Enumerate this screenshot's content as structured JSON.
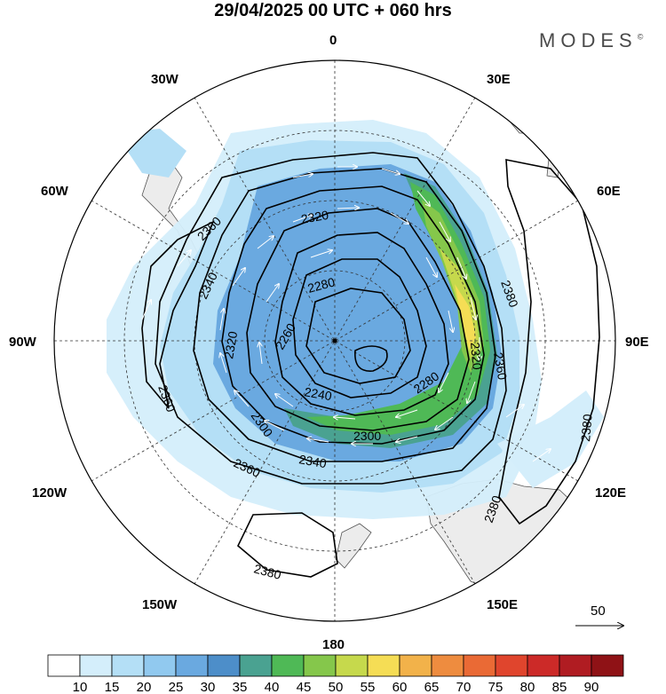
{
  "title": "29/04/2025  00 UTC  + 060 hrs",
  "brand": "MODES",
  "brand_mark": "©",
  "longitude_labels": {
    "top": "0",
    "n30e": "30E",
    "n60e": "60E",
    "e90": "90E",
    "n120e": "120E",
    "n150e": "150E",
    "bottom": "180",
    "n150w": "150W",
    "n120w": "120W",
    "w90": "90W",
    "n60w": "60W",
    "n30w": "30W"
  },
  "contour_labels": {
    "c2360a": "2360",
    "c2320a": "2320",
    "c2340a": "2340",
    "c2280a": "2280",
    "c2320b": "2320",
    "c2260a": "2260",
    "c2360b": "2360",
    "c2380a": "2380",
    "c2320c": "2320",
    "c2360c": "2360",
    "c2240a": "2240",
    "c2280b": "2280",
    "c2300a": "2300",
    "c2300b": "2300",
    "c2340b": "2340",
    "c2360d": "2360",
    "c2380b": "2380",
    "c2380c": "2380",
    "c2380d": "2380"
  },
  "vector_reference": "50",
  "colorbar": {
    "labels": [
      "10",
      "15",
      "20",
      "25",
      "30",
      "35",
      "40",
      "45",
      "50",
      "55",
      "60",
      "65",
      "70",
      "75",
      "80",
      "85",
      "90"
    ],
    "colors": [
      "#ffffff",
      "#d4eefb",
      "#b4dff6",
      "#91c9ef",
      "#6aa9e0",
      "#4d8ec9",
      "#4aa291",
      "#4fb956",
      "#85c74b",
      "#c6d94c",
      "#f5dd55",
      "#f2b24a",
      "#ee8c3f",
      "#ea6a35",
      "#e0452d",
      "#cc2a28",
      "#b01c22",
      "#8f1216"
    ]
  }
}
